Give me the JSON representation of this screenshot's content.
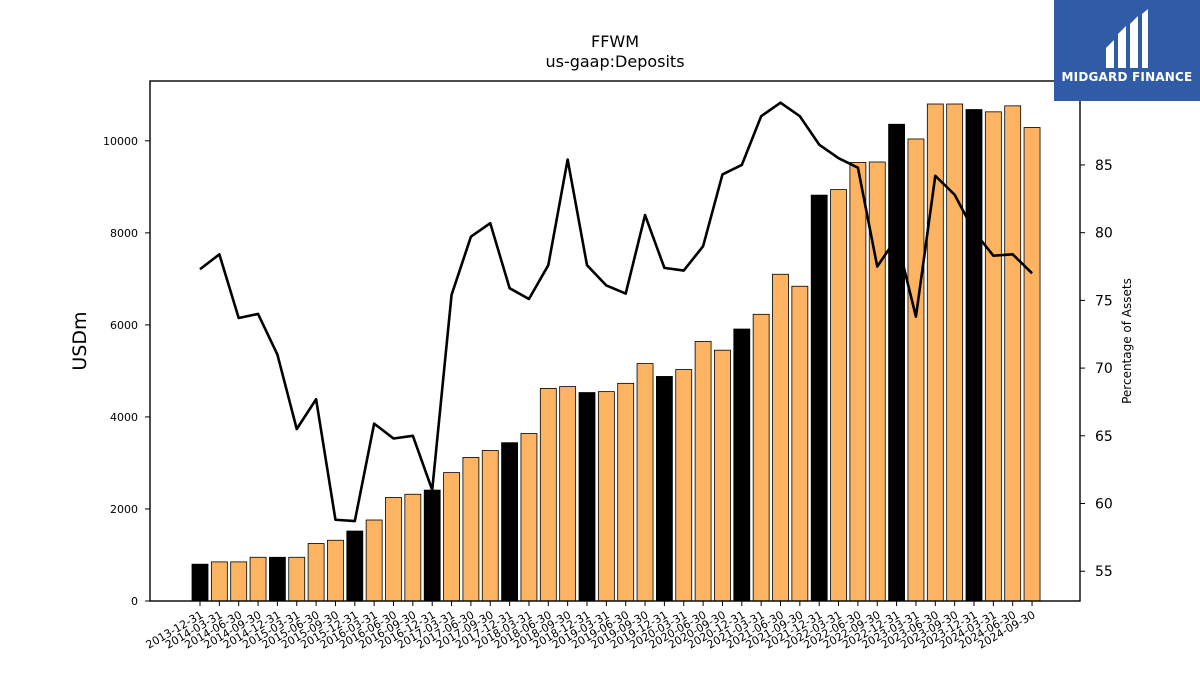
{
  "chart_data": {
    "type": "bar",
    "title": "FFWM",
    "subtitle": "us-gaap:Deposits",
    "ylabel": "USDm",
    "y2label": "Percentage of Assets",
    "ylim": [
      0,
      11300
    ],
    "y2lim": [
      52.8,
      91.2
    ],
    "yticks": [
      0,
      2000,
      4000,
      6000,
      8000,
      10000
    ],
    "y2ticks": [
      55,
      60,
      65,
      70,
      75,
      80,
      85
    ],
    "categories": [
      "2013-12-31",
      "2014-03-31",
      "2014-06-30",
      "2014-09-30",
      "2014-12-31",
      "2015-03-31",
      "2015-06-30",
      "2015-09-30",
      "2015-12-31",
      "2016-03-31",
      "2016-06-30",
      "2016-09-30",
      "2016-12-31",
      "2017-03-31",
      "2017-06-30",
      "2017-09-30",
      "2017-12-31",
      "2018-03-31",
      "2018-06-30",
      "2018-09-30",
      "2018-12-31",
      "2019-03-31",
      "2019-06-30",
      "2019-09-30",
      "2019-12-31",
      "2020-03-31",
      "2020-06-30",
      "2020-09-30",
      "2020-12-31",
      "2021-03-31",
      "2021-06-30",
      "2021-09-30",
      "2021-12-31",
      "2022-03-31",
      "2022-06-30",
      "2022-09-30",
      "2022-12-31",
      "2023-03-31",
      "2023-06-30",
      "2023-09-30",
      "2023-12-31",
      "2024-03-31",
      "2024-06-30",
      "2024-09-30"
    ],
    "series": [
      {
        "type": "bar",
        "values": [
          800,
          850,
          850,
          950,
          950,
          950,
          1250,
          1320,
          1520,
          1760,
          2250,
          2320,
          2410,
          2790,
          3120,
          3270,
          3440,
          3640,
          4620,
          4660,
          4530,
          4550,
          4730,
          5160,
          4880,
          5030,
          5640,
          5450,
          5910,
          6230,
          7100,
          6840,
          8820,
          8940,
          9530,
          9540,
          10360,
          10040,
          10800,
          10800,
          10680,
          10630,
          10760,
          10290
        ],
        "annual_color": "#000000",
        "quarter_color": "#fdb462"
      },
      {
        "type": "line",
        "values": [
          77.3,
          78.4,
          73.7,
          74.0,
          71.0,
          65.5,
          67.7,
          58.8,
          58.7,
          65.9,
          64.8,
          65.0,
          61.0,
          75.4,
          79.7,
          80.7,
          75.9,
          75.1,
          77.6,
          85.4,
          77.6,
          76.1,
          75.5,
          81.3,
          77.4,
          77.2,
          79.0,
          84.3,
          85.0,
          88.6,
          89.6,
          88.6,
          86.5,
          85.5,
          84.8,
          77.5,
          79.6,
          73.8,
          84.2,
          82.8,
          80.1,
          78.3,
          78.4,
          77.0
        ],
        "color": "#000000"
      }
    ],
    "annual_categories": [
      "2013-12-31",
      "2014-12-31",
      "2015-12-31",
      "2016-12-31",
      "2017-12-31",
      "2018-12-31",
      "2019-12-31",
      "2020-12-31",
      "2021-12-31",
      "2022-12-31",
      "2023-12-31"
    ],
    "grid": false
  },
  "logo": {
    "text": "MIDGARD FINANCE",
    "bg": "#2f5ba7"
  }
}
